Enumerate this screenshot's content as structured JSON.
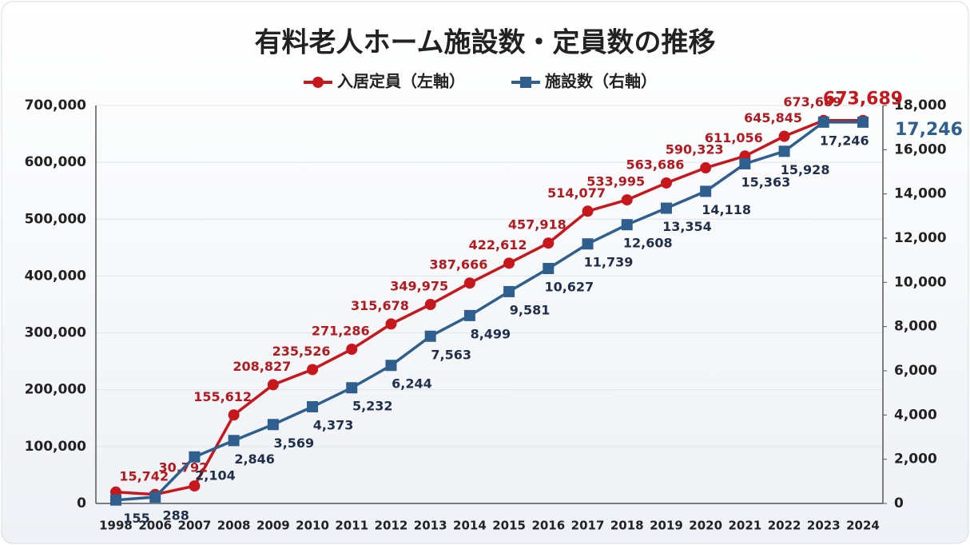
{
  "chart_data": {
    "type": "line",
    "title": "有料老人ホーム施設数・定員数の推移",
    "categories": [
      "1998",
      "2006",
      "2007",
      "2008",
      "2009",
      "2010",
      "2011",
      "2012",
      "2013",
      "2014",
      "2015",
      "2016",
      "2017",
      "2018",
      "2019",
      "2020",
      "2021",
      "2022",
      "2023",
      "2024"
    ],
    "series": [
      {
        "name": "入居定員（左軸）",
        "color": "#c8161d",
        "values": [
          20000,
          15742,
          30792,
          155612,
          208827,
          235526,
          271286,
          315678,
          349975,
          387666,
          422612,
          457918,
          514077,
          533995,
          563686,
          590323,
          611056,
          645845,
          673689,
          673689
        ],
        "value_labels": [
          null,
          "15,742",
          "30,792",
          "155,612",
          "208,827",
          "235,526",
          "271,286",
          "315,678",
          "349,975",
          "387,666",
          "422,612",
          "457,918",
          "514,077",
          "533,995",
          "563,686",
          "590,323",
          "611,056",
          "645,845",
          "673,689",
          "673,689"
        ]
      },
      {
        "name": "施設数（右軸）",
        "color": "#2e5f8f",
        "axis": "y2",
        "values": [
          155,
          288,
          2104,
          2846,
          3569,
          4373,
          5232,
          6244,
          7563,
          8499,
          9581,
          10627,
          11739,
          12608,
          13354,
          14118,
          15363,
          15928,
          17246,
          17246
        ],
        "value_labels": [
          "155",
          "288",
          "2,104",
          "2,846",
          "3,569",
          "4,373",
          "5,232",
          "6,244",
          "7,563",
          "8,499",
          "9,581",
          "10,627",
          "11,739",
          "12,608",
          "13,354",
          "14,118",
          "15,363",
          "15,928",
          "17,246",
          "17,246"
        ]
      }
    ],
    "ylim": [
      0,
      700000
    ],
    "yticks": [
      0,
      {
        "value": 100000,
        "label": "100,000"
      },
      {
        "value": 200000,
        "label": "200,000"
      },
      {
        "value": 300000,
        "label": "300,000"
      },
      {
        "value": 400000,
        "label": "400,000"
      },
      {
        "value": 500000,
        "label": "500,000"
      },
      {
        "value": 600000,
        "label": "600,000"
      },
      {
        "value": 700000,
        "label": "700,000"
      }
    ],
    "y2lim": [
      0,
      18000
    ],
    "y2ticks": [
      0,
      {
        "value": 2000,
        "label": "2,000"
      },
      {
        "value": 4000,
        "label": "4,000"
      },
      {
        "value": 6000,
        "label": "6,000"
      },
      {
        "value": 8000,
        "label": "8,000"
      },
      {
        "value": 10000,
        "label": "10,000"
      },
      {
        "value": 12000,
        "label": "12,000"
      },
      {
        "value": 14000,
        "label": "14,000"
      },
      {
        "value": 16000,
        "label": "16,000"
      },
      {
        "value": 18000,
        "label": "18,000"
      }
    ],
    "grid": true,
    "legend": "top"
  }
}
